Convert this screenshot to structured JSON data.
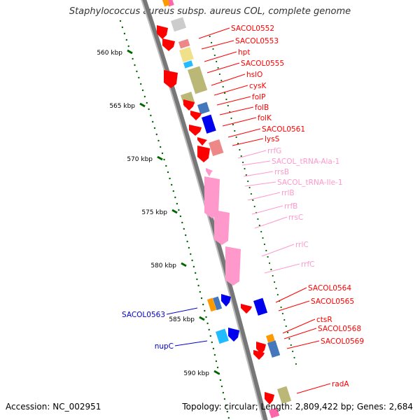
{
  "title": "Staphylococcus aureus subsp. aureus COL, complete genome",
  "footer": {
    "accession": "Accession: NC_002951",
    "summary": "Topology: circular; Length: 2,809,422 bp; Genes: 2,684"
  },
  "colors": {
    "cds": "#ff0000",
    "rna": "#ff99cc",
    "minus_label": "#0000cc",
    "tick": "#006600",
    "backbone": "#888888"
  },
  "ticks": [
    {
      "kbp": 560,
      "label": "560 kbp"
    },
    {
      "kbp": 565,
      "label": "565 kbp"
    },
    {
      "kbp": 570,
      "label": "570 kbp"
    },
    {
      "kbp": 575,
      "label": "575 kbp"
    },
    {
      "kbp": 580,
      "label": "580 kbp"
    },
    {
      "kbp": 585,
      "label": "585 kbp"
    },
    {
      "kbp": 590,
      "label": "590 kbp"
    }
  ],
  "labels_right": [
    {
      "text": "SACOL0552",
      "type": "cds"
    },
    {
      "text": "SACOL0553",
      "type": "cds"
    },
    {
      "text": "hpt",
      "type": "cds"
    },
    {
      "text": "SACOL0555",
      "type": "cds"
    },
    {
      "text": "hslO",
      "type": "cds"
    },
    {
      "text": "cysK",
      "type": "cds"
    },
    {
      "text": "folP",
      "type": "cds"
    },
    {
      "text": "folB",
      "type": "cds"
    },
    {
      "text": "folK",
      "type": "cds"
    },
    {
      "text": "SACOL0561",
      "type": "cds"
    },
    {
      "text": "lysS",
      "type": "cds"
    },
    {
      "text": "rrfG",
      "type": "rna"
    },
    {
      "text": "SACOL_tRNA-Ala-1",
      "type": "rna"
    },
    {
      "text": "rrsB",
      "type": "rna"
    },
    {
      "text": "SACOL_tRNA-Ile-1",
      "type": "rna"
    },
    {
      "text": "rrlB",
      "type": "rna"
    },
    {
      "text": "rrfB",
      "type": "rna"
    },
    {
      "text": "rrsC",
      "type": "rna"
    },
    {
      "text": "rrlC",
      "type": "rna"
    },
    {
      "text": "rrfC",
      "type": "rna"
    },
    {
      "text": "SACOL0564",
      "type": "cds"
    },
    {
      "text": "SACOL0565",
      "type": "cds"
    },
    {
      "text": "ctsR",
      "type": "cds"
    },
    {
      "text": "SACOL0568",
      "type": "cds"
    },
    {
      "text": "SACOL0569",
      "type": "cds"
    },
    {
      "text": "radA",
      "type": "cds"
    }
  ],
  "labels_left": [
    {
      "text": "SACOL0563",
      "type": "minus"
    },
    {
      "text": "nupC",
      "type": "minus"
    }
  ]
}
